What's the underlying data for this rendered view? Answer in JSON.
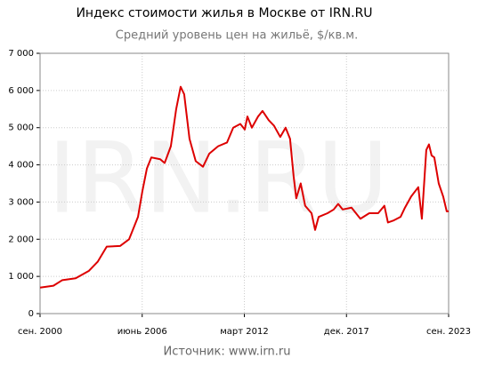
{
  "chart_data": {
    "type": "line",
    "title": "Индекс стоимости жилья в Москве от IRN.RU",
    "subtitle": "Средний уровень цен на жильё, $/кв.м.",
    "source": "Источник: www.irn.ru",
    "watermark": "IRN.RU",
    "grid": true,
    "xlim": [
      2000.667,
      2023.667
    ],
    "xticks": [
      {
        "value": 2000.667,
        "label": "сен. 2000"
      },
      {
        "value": 2006.417,
        "label": "июнь 2006"
      },
      {
        "value": 2012.167,
        "label": "март 2012"
      },
      {
        "value": 2017.917,
        "label": "дек. 2017"
      },
      {
        "value": 2023.667,
        "label": "сен. 2023"
      }
    ],
    "ylim": [
      0,
      7000
    ],
    "yticks": [
      0,
      {
        "value": 1000,
        "label": "1 000"
      },
      {
        "value": 2000,
        "label": "2 000"
      },
      {
        "value": 3000,
        "label": "3 000"
      },
      {
        "value": 4000,
        "label": "4 000"
      },
      {
        "value": 5000,
        "label": "5 000"
      },
      {
        "value": 6000,
        "label": "6 000"
      },
      {
        "value": 7000,
        "label": "7 000"
      }
    ],
    "x": [
      2000.67,
      2001.42,
      2001.92,
      2002.67,
      2003.42,
      2003.92,
      2004.42,
      2005.18,
      2005.68,
      2006.18,
      2006.43,
      2006.68,
      2006.93,
      2007.43,
      2007.68,
      2008.03,
      2008.33,
      2008.58,
      2008.78,
      2009.08,
      2009.43,
      2009.84,
      2010.19,
      2010.69,
      2011.19,
      2011.54,
      2011.94,
      2012.19,
      2012.34,
      2012.59,
      2012.94,
      2013.19,
      2013.54,
      2013.84,
      2014.19,
      2014.49,
      2014.74,
      2014.94,
      2015.09,
      2015.34,
      2015.59,
      2015.95,
      2016.15,
      2016.35,
      2016.85,
      2017.2,
      2017.45,
      2017.7,
      2018.2,
      2018.7,
      2019.2,
      2019.7,
      2020.05,
      2020.25,
      2020.55,
      2020.96,
      2021.21,
      2021.56,
      2021.96,
      2022.16,
      2022.41,
      2022.56,
      2022.71,
      2022.86,
      2023.11,
      2023.36,
      2023.56,
      2023.67
    ],
    "series": [
      {
        "color": "#dd0000",
        "values": [
          700,
          750,
          900,
          950,
          1150,
          1400,
          1800,
          1820,
          2000,
          2600,
          3300,
          3900,
          4200,
          4150,
          4050,
          4500,
          5500,
          6100,
          5900,
          4700,
          4100,
          3950,
          4300,
          4500,
          4600,
          5000,
          5100,
          4950,
          5300,
          5000,
          5300,
          5450,
          5200,
          5050,
          4750,
          5000,
          4700,
          3700,
          3100,
          3500,
          2900,
          2700,
          2250,
          2600,
          2700,
          2800,
          2950,
          2800,
          2850,
          2550,
          2700,
          2700,
          2900,
          2450,
          2500,
          2600,
          2850,
          3150,
          3400,
          2550,
          4400,
          4550,
          4250,
          4200,
          3500,
          3150,
          2750,
          2750
        ]
      }
    ]
  }
}
